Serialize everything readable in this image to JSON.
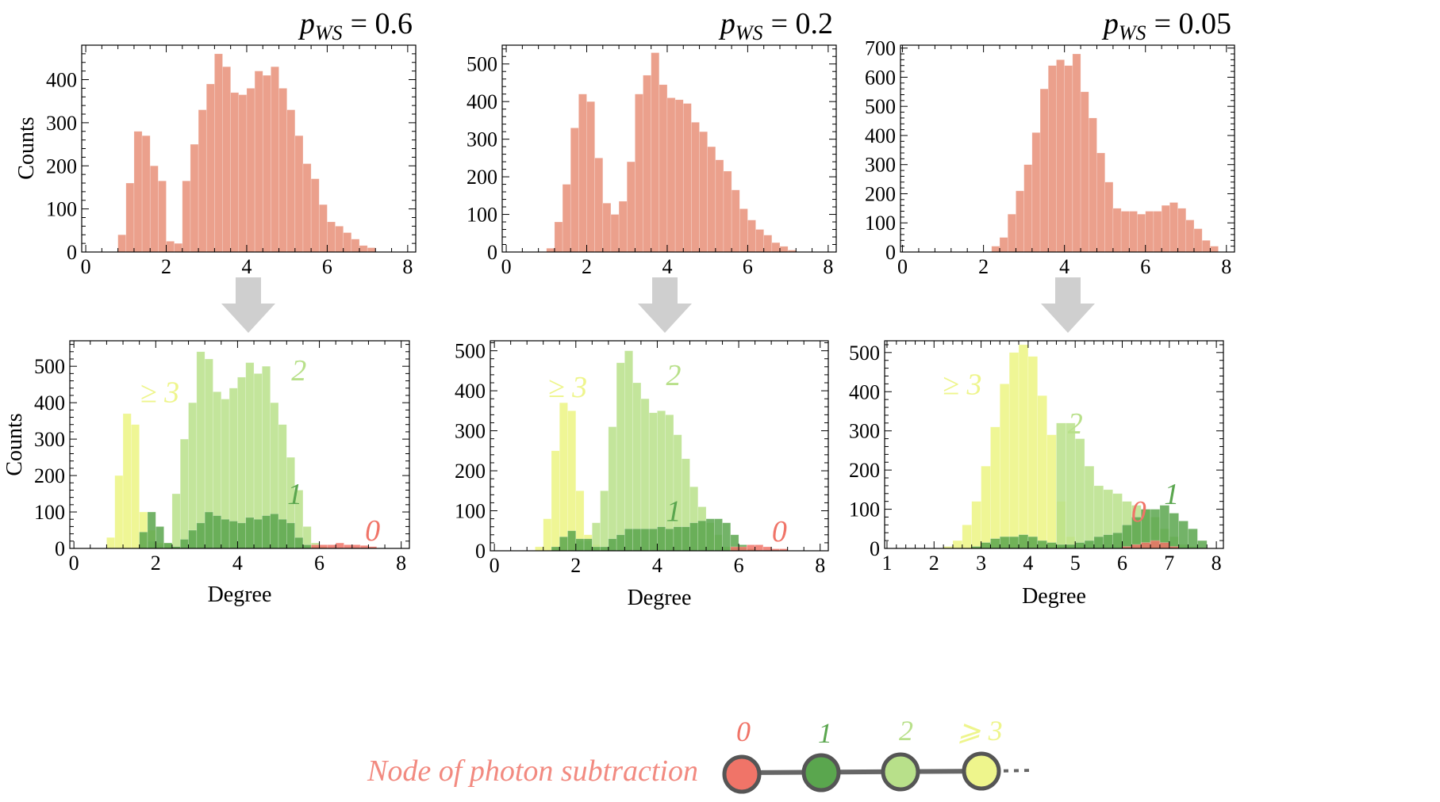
{
  "colors": {
    "salmon": "#eba08c",
    "n0": "#f07468",
    "n1": "#5aa64e",
    "n2": "#b8e08a",
    "n3": "#eef58c",
    "arrow": "#cfcfcf",
    "legend_text": "#f28a80"
  },
  "chart_data": [
    {
      "id": "top-0.6",
      "type": "bar",
      "title_prefix": "p",
      "title_sub": "WS",
      "title_value": "= 0.6",
      "ylabel": "Counts",
      "xlabel": "",
      "xlim": [
        -0.1,
        8.2
      ],
      "ylim": [
        0,
        480
      ],
      "xticks": [
        0,
        2,
        4,
        6,
        8
      ],
      "yticks": [
        0,
        100,
        200,
        300,
        400
      ],
      "bin_width": 0.2,
      "bin_start": 0.8,
      "series": [
        {
          "name": "all",
          "color_key": "salmon",
          "values": [
            40,
            160,
            280,
            270,
            200,
            165,
            25,
            20,
            165,
            250,
            330,
            390,
            460,
            430,
            370,
            365,
            380,
            420,
            410,
            430,
            380,
            330,
            270,
            205,
            170,
            110,
            70,
            60,
            45,
            30,
            15,
            10
          ]
        }
      ]
    },
    {
      "id": "top-0.2",
      "type": "bar",
      "title_prefix": "p",
      "title_sub": "WS",
      "title_value": "= 0.2",
      "ylabel": "",
      "xlabel": "",
      "xlim": [
        -0.1,
        8.2
      ],
      "ylim": [
        0,
        550
      ],
      "xticks": [
        0,
        2,
        4,
        6,
        8
      ],
      "yticks": [
        0,
        100,
        200,
        300,
        400,
        500
      ],
      "bin_width": 0.2,
      "bin_start": 1.0,
      "series": [
        {
          "name": "all",
          "color_key": "salmon",
          "values": [
            10,
            80,
            180,
            330,
            420,
            400,
            250,
            130,
            100,
            135,
            240,
            420,
            470,
            530,
            445,
            410,
            405,
            395,
            345,
            320,
            280,
            245,
            215,
            165,
            115,
            85,
            60,
            45,
            25,
            15,
            5
          ]
        }
      ]
    },
    {
      "id": "top-0.05",
      "type": "bar",
      "title_prefix": "p",
      "title_sub": "WS",
      "title_value": "= 0.05",
      "ylabel": "",
      "xlabel": "",
      "xlim": [
        -0.05,
        8.2
      ],
      "ylim": [
        0,
        710
      ],
      "xticks": [
        0,
        2,
        4,
        6,
        8
      ],
      "yticks": [
        0,
        100,
        200,
        300,
        400,
        500,
        600,
        700
      ],
      "bin_width": 0.2,
      "bin_start": 2.2,
      "series": [
        {
          "name": "all",
          "color_key": "salmon",
          "values": [
            20,
            50,
            130,
            210,
            300,
            410,
            560,
            640,
            660,
            640,
            680,
            550,
            460,
            340,
            240,
            150,
            140,
            140,
            130,
            140,
            140,
            160,
            170,
            150,
            110,
            80,
            40,
            20
          ]
        }
      ]
    },
    {
      "id": "bottom-0.6",
      "type": "bar",
      "ylabel": "Counts",
      "xlabel": "Degree",
      "xlim": [
        -0.1,
        8.2
      ],
      "ylim": [
        0,
        570
      ],
      "xticks": [
        0,
        2,
        4,
        6,
        8
      ],
      "yticks": [
        0,
        100,
        200,
        300,
        400,
        500
      ],
      "bin_width": 0.2,
      "bin_start": 0.8,
      "series": [
        {
          "name": "≥3",
          "color_key": "n3",
          "values": [
            30,
            200,
            370,
            340,
            100,
            50,
            15,
            10,
            5,
            0,
            0,
            0,
            0,
            0,
            0,
            0,
            0,
            0,
            0,
            0,
            0,
            0,
            0,
            0,
            0,
            0,
            0,
            0,
            0,
            0,
            0,
            0,
            0
          ]
        },
        {
          "name": "2",
          "color_key": "n2",
          "values": [
            0,
            0,
            0,
            0,
            0,
            20,
            10,
            15,
            150,
            300,
            400,
            540,
            520,
            430,
            410,
            440,
            470,
            510,
            480,
            500,
            400,
            340,
            250,
            160,
            60,
            15,
            5,
            0,
            0,
            0,
            0,
            0,
            0
          ]
        },
        {
          "name": "1",
          "color_key": "n1",
          "values": [
            0,
            0,
            0,
            0,
            45,
            100,
            60,
            15,
            5,
            25,
            50,
            70,
            100,
            90,
            80,
            75,
            70,
            85,
            80,
            90,
            95,
            80,
            70,
            30,
            10,
            5,
            0,
            0,
            0,
            0,
            0,
            0,
            0
          ]
        },
        {
          "name": "0",
          "color_key": "n0",
          "values": [
            0,
            0,
            0,
            0,
            0,
            0,
            0,
            0,
            0,
            0,
            0,
            0,
            0,
            0,
            0,
            0,
            0,
            0,
            0,
            0,
            0,
            0,
            0,
            0,
            0,
            10,
            10,
            10,
            15,
            10,
            10,
            8,
            5
          ]
        }
      ],
      "annotations": [
        {
          "text": "≥ 3",
          "color_key": "n3",
          "x": 2.1,
          "y": 430
        },
        {
          "text": "2",
          "color_key": "n2",
          "x": 5.5,
          "y": 490
        },
        {
          "text": "1",
          "color_key": "n1",
          "x": 5.4,
          "y": 150
        },
        {
          "text": "0",
          "color_key": "n0",
          "x": 7.3,
          "y": 50
        }
      ]
    },
    {
      "id": "bottom-0.2",
      "type": "bar",
      "ylabel": "",
      "xlabel": "Degree",
      "xlim": [
        -0.1,
        8.2
      ],
      "ylim": [
        0,
        525
      ],
      "xticks": [
        0,
        2,
        4,
        6,
        8
      ],
      "yticks": [
        0,
        100,
        200,
        300,
        400,
        500
      ],
      "bin_width": 0.2,
      "bin_start": 1.0,
      "series": [
        {
          "name": "≥3",
          "color_key": "n3",
          "values": [
            10,
            80,
            250,
            370,
            350,
            150,
            40,
            15,
            5,
            0,
            0,
            0,
            0,
            0,
            0,
            0,
            0,
            0,
            0,
            0,
            0,
            0,
            0,
            0,
            0,
            0,
            0,
            0,
            0,
            0,
            0
          ]
        },
        {
          "name": "2",
          "color_key": "n2",
          "values": [
            0,
            0,
            0,
            0,
            0,
            25,
            25,
            70,
            150,
            310,
            470,
            500,
            420,
            380,
            345,
            350,
            340,
            290,
            230,
            160,
            110,
            70,
            40,
            10,
            5,
            0,
            0,
            0,
            0,
            0,
            0
          ]
        },
        {
          "name": "1",
          "color_key": "n1",
          "values": [
            0,
            0,
            10,
            35,
            50,
            30,
            30,
            10,
            10,
            30,
            40,
            55,
            55,
            55,
            55,
            60,
            55,
            60,
            60,
            70,
            75,
            80,
            80,
            70,
            40,
            15,
            5,
            0,
            0,
            0,
            0
          ]
        },
        {
          "name": "0",
          "color_key": "n0",
          "values": [
            0,
            0,
            0,
            0,
            0,
            0,
            0,
            0,
            0,
            0,
            0,
            0,
            0,
            0,
            0,
            0,
            0,
            0,
            0,
            0,
            0,
            0,
            0,
            0,
            10,
            10,
            15,
            15,
            10,
            5,
            5
          ]
        }
      ],
      "annotations": [
        {
          "text": "≥ 3",
          "color_key": "n3",
          "x": 1.8,
          "y": 410
        },
        {
          "text": "2",
          "color_key": "n2",
          "x": 4.4,
          "y": 440
        },
        {
          "text": "1",
          "color_key": "n1",
          "x": 4.4,
          "y": 100
        },
        {
          "text": "0",
          "color_key": "n0",
          "x": 7.0,
          "y": 50
        }
      ]
    },
    {
      "id": "bottom-0.05",
      "type": "bar",
      "ylabel": "",
      "xlabel": "Degree",
      "xlim": [
        0.95,
        8.15
      ],
      "ylim": [
        0,
        530
      ],
      "xticks": [
        1,
        2,
        3,
        4,
        5,
        6,
        7,
        8
      ],
      "yticks": [
        0,
        100,
        200,
        300,
        400,
        500
      ],
      "bin_width": 0.2,
      "bin_start": 2.2,
      "series": [
        {
          "name": "≥3",
          "color_key": "n3",
          "values": [
            5,
            20,
            60,
            120,
            210,
            310,
            420,
            500,
            520,
            490,
            390,
            290,
            120,
            30,
            5,
            0,
            0,
            0,
            0,
            0,
            0,
            0,
            0,
            0,
            0,
            0,
            0,
            0
          ]
        },
        {
          "name": "2",
          "color_key": "n2",
          "values": [
            0,
            0,
            0,
            0,
            0,
            0,
            0,
            0,
            0,
            0,
            0,
            0,
            320,
            320,
            280,
            210,
            160,
            150,
            140,
            120,
            110,
            100,
            80,
            50,
            30,
            10,
            5,
            0
          ]
        },
        {
          "name": "1",
          "color_key": "n1",
          "values": [
            0,
            0,
            0,
            5,
            15,
            25,
            30,
            30,
            35,
            30,
            20,
            15,
            10,
            10,
            15,
            20,
            30,
            35,
            40,
            60,
            80,
            100,
            100,
            110,
            90,
            70,
            50,
            20
          ]
        },
        {
          "name": "0",
          "color_key": "n0",
          "values": [
            0,
            0,
            0,
            0,
            0,
            0,
            0,
            0,
            0,
            0,
            0,
            0,
            0,
            0,
            0,
            0,
            0,
            0,
            0,
            5,
            10,
            15,
            20,
            15,
            5,
            0,
            0,
            0
          ]
        }
      ],
      "annotations": [
        {
          "text": "≥ 3",
          "color_key": "n3",
          "x": 2.6,
          "y": 420
        },
        {
          "text": "2",
          "color_key": "n2",
          "x": 5.0,
          "y": 320
        },
        {
          "text": "1",
          "color_key": "n1",
          "x": 7.05,
          "y": 140
        },
        {
          "text": "0",
          "color_key": "n0",
          "x": 6.35,
          "y": 95
        }
      ]
    }
  ],
  "legend": {
    "label": "Node of photon subtraction",
    "nodes": [
      {
        "label": "0",
        "color_key": "n0"
      },
      {
        "label": "1",
        "color_key": "n1"
      },
      {
        "label": "2",
        "color_key": "n2"
      },
      {
        "label": "⩾ 3",
        "color_key": "n3"
      }
    ]
  }
}
